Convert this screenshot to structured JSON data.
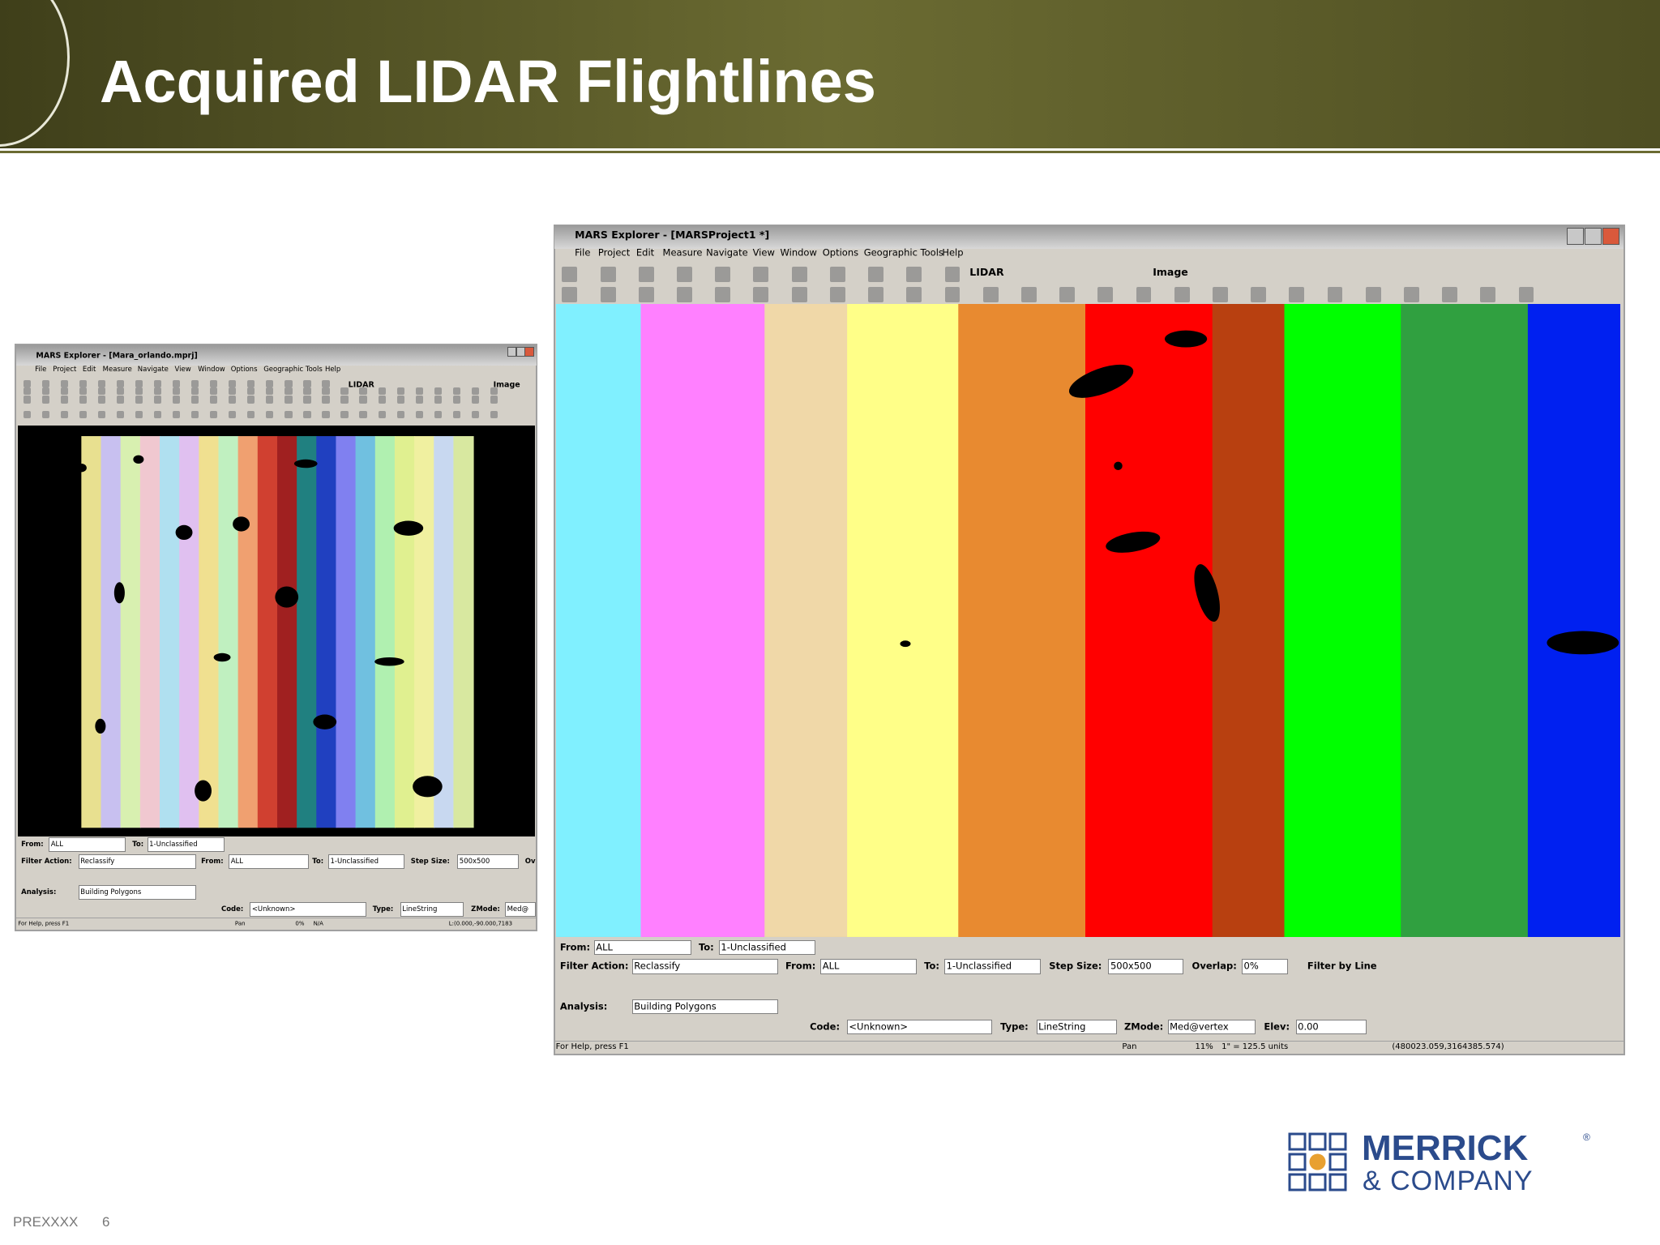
{
  "header": {
    "title": "Acquired LIDAR Flightlines"
  },
  "windows": [
    {
      "title": "MARS Explorer - [Mara_orlando.mprj]",
      "menu": [
        "File",
        "Project",
        "Edit",
        "Measure",
        "Navigate",
        "View",
        "Window",
        "Options",
        "Geographic Tools",
        "Help"
      ],
      "layers": [
        "LIDAR",
        "Image"
      ],
      "rows": [
        [
          "From:",
          "ALL",
          "To:",
          "1-Unclassified"
        ],
        [
          "Filter Action:",
          "Reclassify",
          "From:",
          "ALL",
          "To:",
          "1-Unclassified",
          "Step Size:",
          "500x500",
          "Ov"
        ],
        [
          "Analysis:",
          "Building Polygons"
        ],
        [
          "Code:",
          "<Unknown>",
          "Type:",
          "LineString",
          "ZMode:",
          "Med@"
        ]
      ],
      "status": [
        "For Help, press F1",
        "Pan",
        "0%",
        "N/A",
        "L:(0.000,-90.000,7183"
      ]
    },
    {
      "title": "MARS Explorer - [MARSProject1 *]",
      "menu": [
        "File",
        "Project",
        "Edit",
        "Measure",
        "Navigate",
        "View",
        "Window",
        "Options",
        "Geographic Tools",
        "Help"
      ],
      "layers": [
        "LIDAR",
        "Image"
      ],
      "rows": [
        [
          "From:",
          "ALL",
          "To:",
          "1-Unclassified"
        ],
        [
          "Filter Action:",
          "Reclassify",
          "From:",
          "ALL",
          "To:",
          "1-Unclassified",
          "Step Size:",
          "500x500",
          "Overlap:",
          "0%",
          "Filter by Line"
        ],
        [
          "Analysis:",
          "Building Polygons"
        ],
        [
          "Code:",
          "<Unknown>",
          "Type:",
          "LineString",
          "ZMode:",
          "Med@vertex",
          "Elev:",
          "0.00"
        ]
      ],
      "status": [
        "For Help, press F1",
        "Pan",
        "11%",
        "1\" = 125.5 units",
        "(480023.059,3164385.574)"
      ]
    }
  ],
  "logo": {
    "name": "MERRICK",
    "mark": "®",
    "sub": "& COMPANY"
  },
  "footer": {
    "code": "PREXXXX",
    "page": "6"
  }
}
